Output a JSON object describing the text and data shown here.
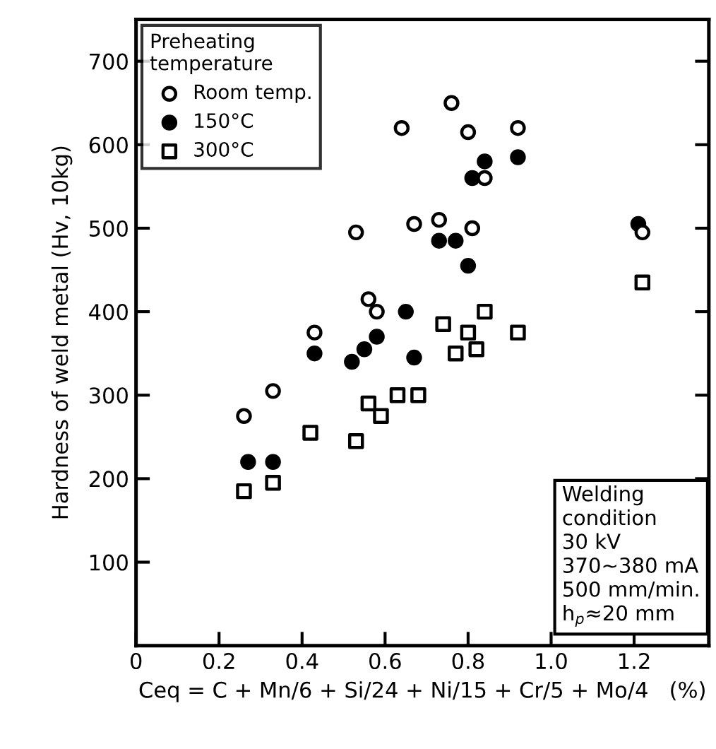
{
  "chart_data": {
    "type": "scatter",
    "xlabel": "Ceq = C + Mn/6 + Si/24 + Ni/15 + Cr/5 + Mo/4   (%)",
    "ylabel": "Hardness of weld metal (Hv, 10kg)",
    "legend_title": "Preheating\ntemperature",
    "legend": "top left",
    "annotations": [
      "Welding\ncondition",
      "30 kV",
      "370~380 mA",
      "500 mm/min.",
      "h$_{p}$≈20 mm"
    ],
    "xlim": [
      0,
      1.38
    ],
    "ylim": [
      0,
      750
    ],
    "xticks": [
      0,
      0.2,
      0.4,
      0.6,
      0.8,
      {
        "value": 1.0,
        "label": "1.0"
      },
      1.2
    ],
    "yticks": [
      100,
      200,
      300,
      400,
      500,
      600,
      700
    ],
    "grid": false,
    "series": [
      {
        "name": "Room temp.",
        "color": "#ffffff",
        "marker": "circle",
        "x": [
          0.26,
          0.33,
          0.43,
          0.53,
          0.56,
          0.58,
          0.64,
          0.67,
          0.73,
          0.76,
          0.8,
          0.81,
          0.84,
          0.92,
          1.22
        ],
        "values": [
          275,
          305,
          375,
          495,
          415,
          400,
          620,
          505,
          510,
          650,
          615,
          500,
          560,
          620,
          495
        ]
      },
      {
        "name": "150°C",
        "color": "#000000",
        "marker": "circle",
        "x": [
          0.27,
          0.33,
          0.43,
          0.52,
          0.55,
          0.58,
          0.65,
          0.67,
          0.73,
          0.77,
          0.8,
          0.81,
          0.84,
          0.92,
          1.21
        ],
        "values": [
          220,
          220,
          350,
          340,
          355,
          370,
          400,
          345,
          485,
          485,
          455,
          560,
          580,
          585,
          505
        ]
      },
      {
        "name": "300°C",
        "color": "#ffffff",
        "marker": "square",
        "x": [
          0.26,
          0.33,
          0.42,
          0.53,
          0.56,
          0.59,
          0.63,
          0.68,
          0.74,
          0.77,
          0.8,
          0.82,
          0.84,
          0.92,
          1.22
        ],
        "values": [
          185,
          195,
          255,
          245,
          290,
          275,
          300,
          300,
          385,
          350,
          375,
          355,
          400,
          375,
          435
        ]
      }
    ]
  }
}
